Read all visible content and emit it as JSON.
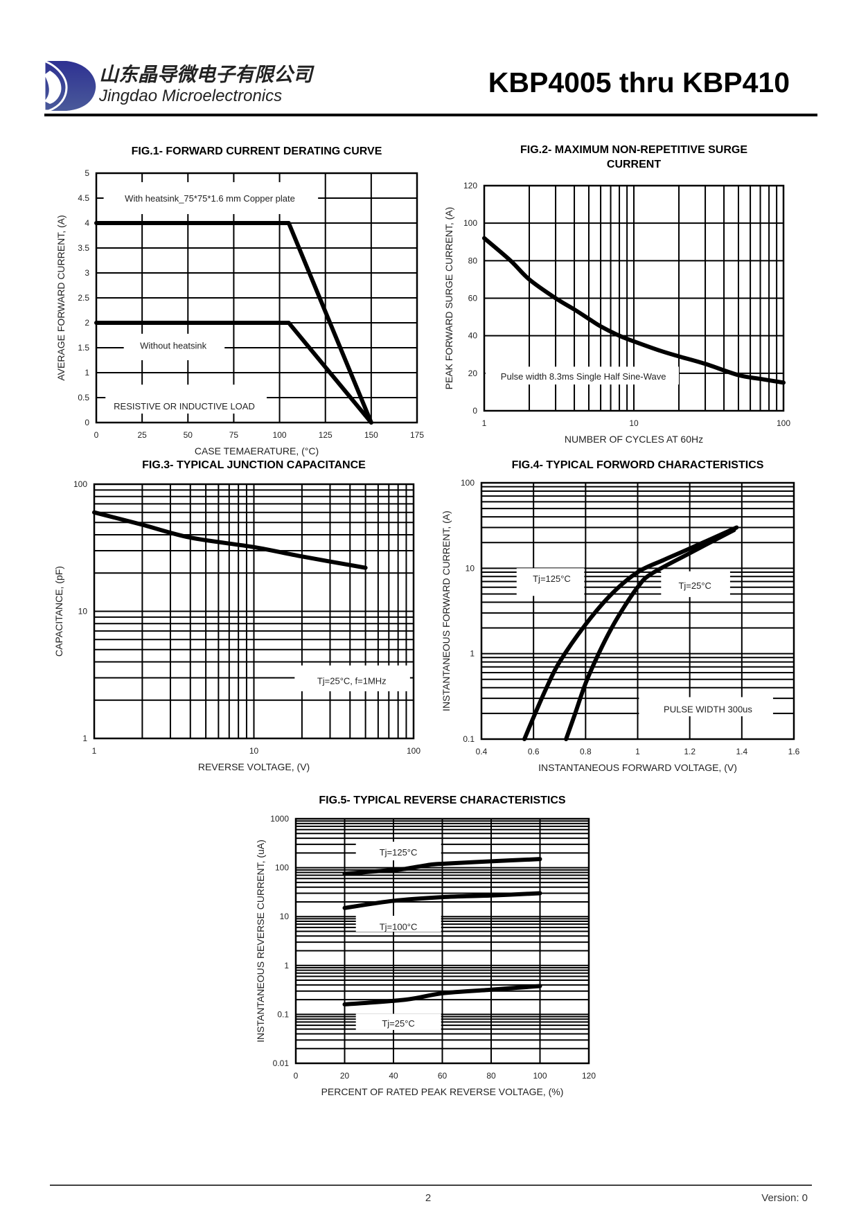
{
  "header": {
    "company_cn": "山东晶导微电子有限公司",
    "company_en": "Jingdao Microelectronics",
    "title": "KBP4005 thru KBP410",
    "logo_color": "#2e3192"
  },
  "footer": {
    "page_number": "2",
    "version": "Version: 0"
  },
  "chart_data": [
    {
      "type": "line",
      "title": "FIG.1- FORWARD CURRENT DERATING CURVE",
      "xlabel": "CASE TEMAERATURE, (°C)",
      "ylabel": "AVERAGE FORWARD CURRENT, (A)",
      "xscale": "linear",
      "yscale": "linear",
      "xlim": [
        0,
        175
      ],
      "ylim": [
        0,
        5
      ],
      "xticks": [
        "0",
        "25",
        "50",
        "75",
        "100",
        "125",
        "150",
        "175"
      ],
      "yticks": [
        "0",
        "0.5",
        "1",
        "1.5",
        "2",
        "2.5",
        "3",
        "3.5",
        "4",
        "4.5",
        "5"
      ],
      "grid": true,
      "series": [
        {
          "name": "With heatsink",
          "x": [
            0,
            105,
            150
          ],
          "y": [
            4,
            4,
            0
          ]
        },
        {
          "name": "Without heatsink",
          "x": [
            0,
            105,
            150
          ],
          "y": [
            2,
            2,
            0
          ]
        }
      ],
      "annotations": [
        "With heatsink_75*75*1.6 mm Copper plate",
        "Without heatsink",
        "RESISTIVE OR INDUCTIVE LOAD"
      ]
    },
    {
      "type": "line",
      "title": "FIG.2- MAXIMUM NON-REPETITIVE SURGE",
      "title2": "CURRENT",
      "xlabel": "NUMBER OF CYCLES AT 60Hz",
      "ylabel": "PEAK FORWARD SURGE CURRENT, (A)",
      "xscale": "log",
      "yscale": "linear",
      "xlim": [
        1,
        100
      ],
      "ylim": [
        0,
        120
      ],
      "xticks": [
        "1",
        "10",
        "100"
      ],
      "yticks": [
        "0",
        "20",
        "40",
        "60",
        "80",
        "100",
        "120"
      ],
      "grid": true,
      "series": [
        {
          "name": "Surge",
          "x": [
            1,
            1.5,
            2,
            3,
            4,
            5,
            6,
            8,
            10,
            15,
            20,
            30,
            50,
            70,
            100
          ],
          "y": [
            92,
            80,
            70,
            60,
            54,
            49,
            45,
            40,
            37,
            32,
            29,
            25,
            19,
            17,
            15
          ]
        }
      ],
      "annotations": [
        "Pulse width 8.3ms Single Half Sine-Wave"
      ]
    },
    {
      "type": "line",
      "title": "FIG.3- TYPICAL JUNCTION CAPACITANCE",
      "xlabel": "REVERSE VOLTAGE, (V)",
      "ylabel": "CAPACITANCE, (pF)",
      "xscale": "log",
      "yscale": "log",
      "xlim": [
        1,
        100
      ],
      "ylim": [
        1,
        100
      ],
      "xticks": [
        "1",
        "10",
        "100"
      ],
      "yticks": [
        "1",
        "10",
        "100"
      ],
      "grid": true,
      "series": [
        {
          "name": "Tj=25°C",
          "x": [
            1,
            2,
            4,
            10,
            20,
            50
          ],
          "y": [
            60,
            48,
            38,
            32,
            27,
            22
          ]
        }
      ],
      "annotations": [
        "Tj=25°C, f=1MHz"
      ]
    },
    {
      "type": "line",
      "title": "FIG.4- TYPICAL FORWORD CHARACTERISTICS",
      "xlabel": "INSTANTANEOUS FORWARD VOLTAGE, (V)",
      "ylabel": "INSTANTANEOUS FORWARD CURRENT, (A)",
      "xscale": "linear",
      "yscale": "log",
      "xlim": [
        0.4,
        1.6
      ],
      "ylim": [
        0.1,
        100
      ],
      "xticks": [
        "0.4",
        "0.6",
        "0.8",
        "1",
        "1.2",
        "1.4",
        "1.6"
      ],
      "yticks": [
        "0.1",
        "1",
        "10",
        "100"
      ],
      "grid": true,
      "series": [
        {
          "name": "Tj=125°C",
          "x": [
            0.565,
            0.6,
            0.65,
            0.7,
            0.8,
            0.9,
            1.0,
            1.1,
            1.2,
            1.38
          ],
          "y": [
            0.1,
            0.18,
            0.4,
            0.8,
            2.2,
            5,
            9,
            12.5,
            17,
            30
          ]
        },
        {
          "name": "Tj=25°C",
          "x": [
            0.725,
            0.76,
            0.8,
            0.85,
            0.9,
            0.95,
            1.0,
            1.05,
            1.2,
            1.37
          ],
          "y": [
            0.1,
            0.2,
            0.45,
            1,
            2,
            3.6,
            6,
            8.5,
            15,
            28
          ]
        }
      ],
      "annotations": [
        "Tj=125°C",
        "Tj=25°C",
        "PULSE WIDTH 300us"
      ]
    },
    {
      "type": "line",
      "title": "FIG.5- TYPICAL REVERSE CHARACTERISTICS",
      "xlabel": "PERCENT OF RATED PEAK REVERSE VOLTAGE, (%)",
      "ylabel": "INSTANTANEOUS REVERSE CURRENT, (uA)",
      "xscale": "linear",
      "yscale": "log",
      "xlim": [
        0,
        120
      ],
      "ylim": [
        0.01,
        1000
      ],
      "xticks": [
        "0",
        "20",
        "40",
        "60",
        "80",
        "100",
        "120"
      ],
      "yticks": [
        "0.01",
        "0.1",
        "1",
        "10",
        "100",
        "1000"
      ],
      "grid": true,
      "series": [
        {
          "name": "Tj=125°C",
          "x": [
            20,
            40,
            45,
            55,
            60,
            80,
            100
          ],
          "y": [
            75,
            90,
            95,
            115,
            120,
            135,
            150
          ]
        },
        {
          "name": "Tj=100°C",
          "x": [
            20,
            40,
            60,
            80,
            100
          ],
          "y": [
            15,
            21,
            25,
            27,
            30
          ]
        },
        {
          "name": "Tj=25°C",
          "x": [
            20,
            45,
            60,
            80,
            100
          ],
          "y": [
            0.16,
            0.2,
            0.27,
            0.32,
            0.38
          ]
        }
      ],
      "annotations": [
        "Tj=125°C",
        "Tj=100°C",
        "Tj=25°C"
      ]
    }
  ]
}
